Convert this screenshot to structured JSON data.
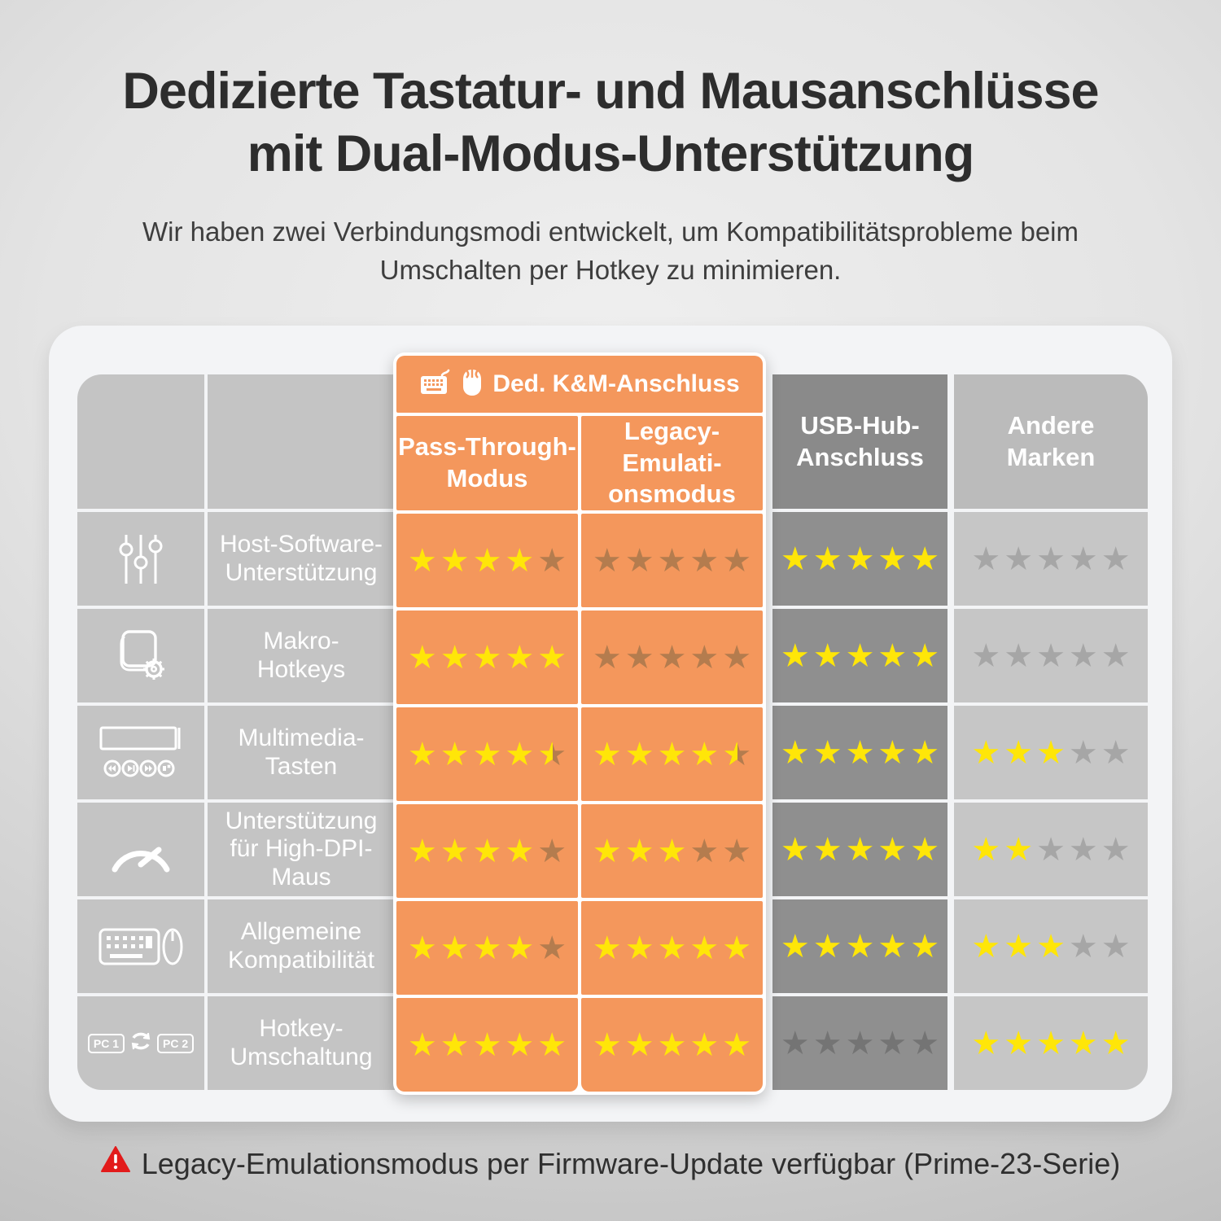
{
  "page": {
    "title": "Dedizierte Tastatur- und Mausanschlüsse\nmit Dual-Modus-Unterstützung",
    "subtitle": "Wir haben zwei Verbindungsmodi entwickelt, um Kompatibilitätsprobleme beim\nUmschalten per Hotkey zu minimieren.",
    "footnote": "Legacy-Emulationsmodus per Firmware-Update verfügbar (Prime-23-Serie)"
  },
  "colors": {
    "orange": "#f4975c",
    "star_filled": "#ffe608",
    "star_unfilled_on_orange": "#b47c4e",
    "star_unfilled_on_dark": "#747474",
    "star_unfilled_on_light": "#a6a6a6",
    "dark_column": "#8f8f8f",
    "light_column": "#c6c6c6",
    "label_column": "#c4c4c4",
    "warning_red": "#e21b1b"
  },
  "table": {
    "group_header": "Ded. K&M-Anschluss",
    "columns": {
      "pass": {
        "label": "Pass-Through-\nModus"
      },
      "legacy": {
        "label": "Legacy-\nEmulati-\nonsmodus"
      },
      "usb": {
        "label": "USB-Hub-\nAnschluss"
      },
      "andere": {
        "label": "Andere\nMarken"
      }
    },
    "rows": [
      {
        "icon": "sliders-icon",
        "label": "Host-Software-\nUnterstützung",
        "ratings": {
          "pass": 4,
          "legacy": 0,
          "usb": 5,
          "andere": 0
        }
      },
      {
        "icon": "macro-gear-icon",
        "label": "Makro-\nHotkeys",
        "ratings": {
          "pass": 5,
          "legacy": 0,
          "usb": 5,
          "andere": 0
        }
      },
      {
        "icon": "media-keys-icon",
        "label": "Multimedia-\nTasten",
        "ratings": {
          "pass": 4.5,
          "legacy": 4.5,
          "usb": 5,
          "andere": 3
        }
      },
      {
        "icon": "speed-gauge-icon",
        "label": "Unterstützung\nfür High-DPI-\nMaus",
        "ratings": {
          "pass": 4,
          "legacy": 3,
          "usb": 5,
          "andere": 2
        }
      },
      {
        "icon": "keyboard-mouse-icon",
        "label": "Allgemeine\nKompatibilität",
        "ratings": {
          "pass": 4,
          "legacy": 5,
          "usb": 5,
          "andere": 3
        }
      },
      {
        "icon": "pc-switch-icon",
        "label": "Hotkey-\nUmschaltung",
        "ratings": {
          "pass": 5,
          "legacy": 5,
          "usb": 0,
          "andere": 5
        }
      }
    ],
    "max_stars": 5
  },
  "icons": {
    "pc1_label": "PC 1",
    "pc2_label": "PC 2"
  }
}
